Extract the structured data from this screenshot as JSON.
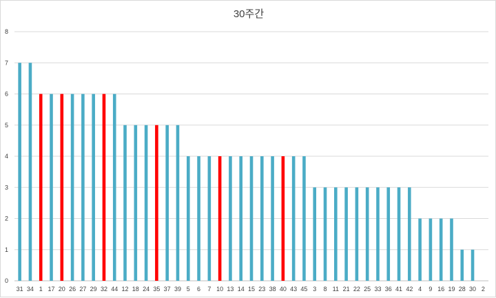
{
  "chart_data": {
    "type": "bar",
    "title": "30주간",
    "xlabel": "",
    "ylabel": "",
    "ylim": [
      0,
      8
    ],
    "yticks": [
      0,
      1,
      2,
      3,
      4,
      5,
      6,
      7,
      8
    ],
    "grid": true,
    "legend": "none",
    "categories": [
      "31",
      "34",
      "1",
      "17",
      "20",
      "26",
      "27",
      "29",
      "32",
      "44",
      "12",
      "18",
      "24",
      "35",
      "37",
      "39",
      "5",
      "6",
      "7",
      "10",
      "13",
      "14",
      "15",
      "23",
      "38",
      "40",
      "43",
      "45",
      "3",
      "8",
      "11",
      "21",
      "22",
      "25",
      "33",
      "36",
      "41",
      "42",
      "4",
      "9",
      "16",
      "19",
      "28",
      "30",
      "2"
    ],
    "values": [
      7,
      7,
      6,
      6,
      6,
      6,
      6,
      6,
      6,
      6,
      5,
      5,
      5,
      5,
      5,
      5,
      4,
      4,
      4,
      4,
      4,
      4,
      4,
      4,
      4,
      4,
      4,
      4,
      3,
      3,
      3,
      3,
      3,
      3,
      3,
      3,
      3,
      3,
      2,
      2,
      2,
      2,
      1,
      1,
      0
    ],
    "highlighted": [
      "1",
      "20",
      "32",
      "35",
      "10",
      "40"
    ],
    "colors": {
      "default": "#4bacc6",
      "highlight": "#ff0000",
      "grid": "#d9d9d9",
      "axis": "#bfbfbf"
    }
  }
}
